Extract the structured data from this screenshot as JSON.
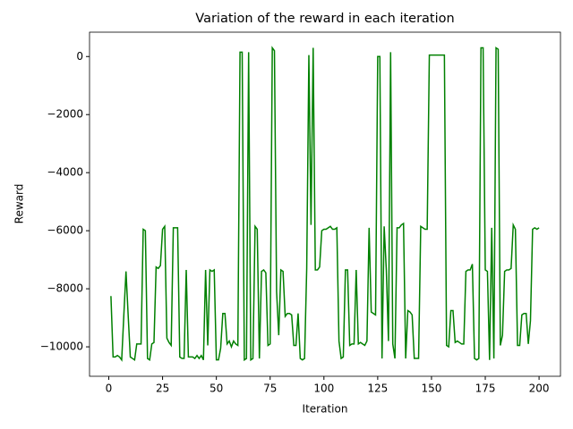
{
  "chart_data": {
    "type": "line",
    "title": "Variation of the reward in each iteration",
    "xlabel": "Iteration",
    "ylabel": "Reward",
    "x": [
      1,
      2,
      3,
      4,
      5,
      6,
      7,
      8,
      9,
      10,
      11,
      12,
      13,
      14,
      15,
      16,
      17,
      18,
      19,
      20,
      21,
      22,
      23,
      24,
      25,
      26,
      27,
      28,
      29,
      30,
      31,
      32,
      33,
      34,
      35,
      36,
      37,
      38,
      39,
      40,
      41,
      42,
      43,
      44,
      45,
      46,
      47,
      48,
      49,
      50,
      51,
      52,
      53,
      54,
      55,
      56,
      57,
      58,
      59,
      60,
      61,
      62,
      63,
      64,
      65,
      66,
      67,
      68,
      69,
      70,
      71,
      72,
      73,
      74,
      75,
      76,
      77,
      78,
      79,
      80,
      81,
      82,
      83,
      84,
      85,
      86,
      87,
      88,
      89,
      90,
      91,
      92,
      93,
      94,
      95,
      96,
      97,
      98,
      99,
      100,
      101,
      102,
      103,
      104,
      105,
      106,
      107,
      108,
      109,
      110,
      111,
      112,
      113,
      114,
      115,
      116,
      117,
      118,
      119,
      120,
      121,
      122,
      123,
      124,
      125,
      126,
      127,
      128,
      129,
      130,
      131,
      132,
      133,
      134,
      135,
      136,
      137,
      138,
      139,
      140,
      141,
      142,
      143,
      144,
      145,
      146,
      147,
      148,
      149,
      150,
      151,
      152,
      153,
      154,
      155,
      156,
      157,
      158,
      159,
      160,
      161,
      162,
      163,
      164,
      165,
      166,
      167,
      168,
      169,
      170,
      171,
      172,
      173,
      174,
      175,
      176,
      177,
      178,
      179,
      180,
      181,
      182,
      183,
      184,
      185,
      186,
      187,
      188,
      189,
      190,
      191,
      192,
      193,
      194,
      195,
      196,
      197,
      198,
      199,
      200
    ],
    "series": [
      {
        "color": "#008000",
        "values": [
          -8250,
          -10350,
          -10350,
          -10300,
          -10350,
          -10450,
          -8900,
          -7400,
          -8900,
          -10350,
          -10400,
          -10450,
          -9900,
          -9900,
          -9900,
          -5950,
          -6000,
          -10400,
          -10450,
          -9900,
          -9850,
          -7250,
          -7300,
          -7200,
          -5950,
          -5850,
          -9700,
          -9850,
          -9950,
          -5900,
          -5900,
          -5900,
          -10350,
          -10400,
          -10400,
          -7350,
          -10350,
          -10350,
          -10350,
          -10400,
          -10300,
          -10400,
          -10300,
          -10450,
          -7350,
          -9950,
          -7350,
          -7400,
          -7350,
          -10450,
          -10450,
          -10050,
          -8850,
          -8850,
          -9900,
          -9800,
          -10000,
          -9800,
          -9900,
          -9950,
          150,
          150,
          -10450,
          -10400,
          150,
          -10450,
          -10400,
          -5850,
          -5950,
          -10400,
          -7400,
          -7350,
          -7450,
          -9950,
          -9900,
          300,
          200,
          -8100,
          -9600,
          -7350,
          -7400,
          -8950,
          -8850,
          -8850,
          -8900,
          -9950,
          -9950,
          -8850,
          -10400,
          -10450,
          -10400,
          -7300,
          50,
          -5800,
          300,
          -7350,
          -7350,
          -7250,
          -6000,
          -5950,
          -5950,
          -5900,
          -5850,
          -5950,
          -5950,
          -5900,
          -9800,
          -10400,
          -10350,
          -7350,
          -7350,
          -9950,
          -9900,
          -9900,
          -7350,
          -9900,
          -9850,
          -9900,
          -9950,
          -9800,
          -5900,
          -8800,
          -8850,
          -8900,
          0,
          0,
          -10400,
          -5850,
          -7350,
          -9800,
          150,
          -9900,
          -10400,
          -5900,
          -5900,
          -5800,
          -5750,
          -10400,
          -8750,
          -8800,
          -8900,
          -10400,
          -10400,
          -10400,
          -5850,
          -5900,
          -5950,
          -5950,
          50,
          50,
          50,
          50,
          50,
          50,
          50,
          50,
          -9950,
          -10000,
          -8750,
          -8750,
          -9850,
          -9800,
          -9850,
          -9900,
          -9900,
          -7400,
          -7350,
          -7350,
          -7150,
          -10400,
          -10450,
          -10400,
          300,
          300,
          -7350,
          -7400,
          -10450,
          -5900,
          -10400,
          300,
          250,
          -9950,
          -9600,
          -7400,
          -7350,
          -7350,
          -7300,
          -5800,
          -5950,
          -9950,
          -9950,
          -8900,
          -8850,
          -8850,
          -9900,
          -9100,
          -5950,
          -5900,
          -5950,
          -5900
        ]
      }
    ],
    "xlim": [
      -8.95,
      209.95
    ],
    "xticks": [
      0,
      25,
      50,
      75,
      100,
      125,
      150,
      175,
      200
    ],
    "ylim": [
      -11014,
      839
    ],
    "yticks": [
      0,
      {
        "value": -2000,
        "label": "−2000"
      },
      {
        "value": -4000,
        "label": "−4000"
      },
      {
        "value": -6000,
        "label": "−6000"
      },
      {
        "value": -8000,
        "label": "−8000"
      },
      {
        "value": -10000,
        "label": "−10000"
      }
    ],
    "grid": false
  }
}
